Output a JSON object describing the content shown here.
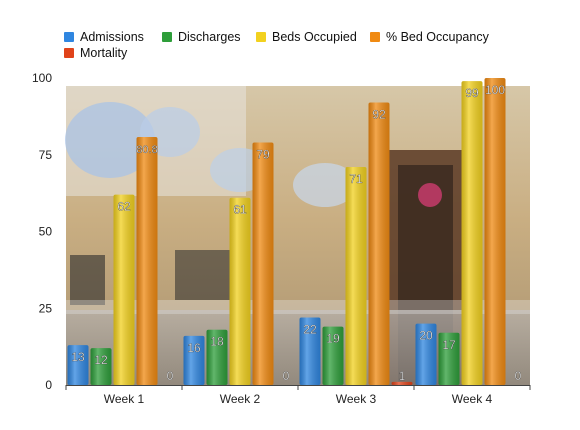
{
  "chart_data": {
    "type": "bar",
    "categories": [
      "Week 1",
      "Week 2",
      "Week 3",
      "Week 4"
    ],
    "series": [
      {
        "name": "Admissions",
        "color": "#2f86e0",
        "values": [
          13,
          16,
          22,
          20
        ]
      },
      {
        "name": "Discharges",
        "color": "#2e9e3a",
        "values": [
          12,
          18,
          19,
          17
        ]
      },
      {
        "name": "Beds Occupied",
        "color": "#f2d11f",
        "values": [
          62,
          61,
          71,
          99
        ]
      },
      {
        "name": "% Bed Occupancy",
        "color": "#f08a12",
        "values": [
          80.8,
          79,
          92,
          100
        ]
      },
      {
        "name": "Mortality",
        "color": "#e0431a",
        "values": [
          0,
          0,
          1,
          0
        ]
      }
    ],
    "data_labels": [
      [
        "13",
        "12",
        "62",
        "80.8",
        "0"
      ],
      [
        "16",
        "18",
        "61",
        "79",
        "0"
      ],
      [
        "22",
        "19",
        "71",
        "92",
        "1"
      ],
      [
        "20",
        "17",
        "99",
        "100",
        "0"
      ]
    ],
    "ylim": [
      0,
      100
    ],
    "yticks": [
      0,
      25,
      50,
      75,
      100
    ],
    "grid": false,
    "legend_position": "top",
    "background": "photo of hospital ward"
  }
}
